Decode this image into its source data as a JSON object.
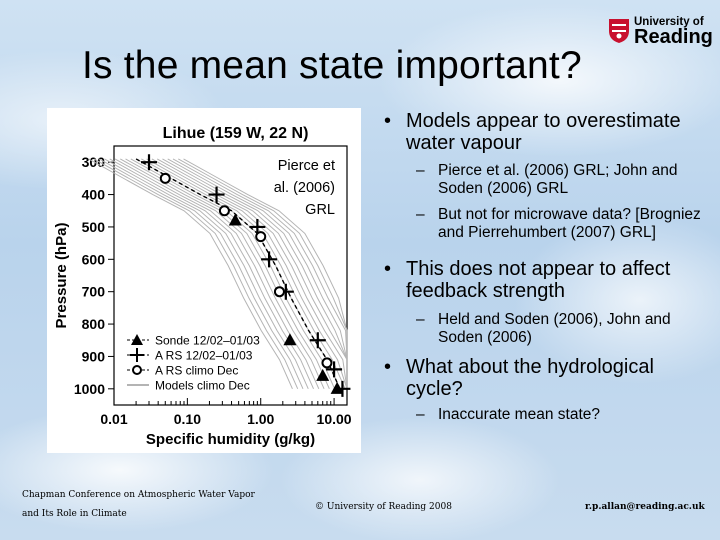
{
  "slide": {
    "title": "Is the mean state important?",
    "logo": {
      "line1": "University of",
      "line2": "Reading"
    }
  },
  "chart_data": {
    "type": "line",
    "title": "Lihue (159 W, 22 N)",
    "annotation": "Pierce et al. (2006) GRL",
    "xlabel": "Specific humidity (g/kg)",
    "ylabel": "Pressure (hPa)",
    "x_scale": "log",
    "xlim": [
      0.01,
      15
    ],
    "ylim": [
      1050,
      250
    ],
    "x_tick_labels": [
      "0.01",
      "0.10",
      "1.00",
      "10.00"
    ],
    "x_ticks": [
      0.01,
      0.1,
      1,
      10
    ],
    "y_ticks": [
      300,
      400,
      500,
      600,
      700,
      800,
      900,
      1000
    ],
    "legend_position": "bottom-left",
    "series": [
      {
        "name": "Sonde 12/02–01/03",
        "marker": "triangle",
        "points": [
          [
            0.45,
            480
          ],
          [
            2.5,
            850
          ],
          [
            7,
            960
          ],
          [
            11,
            1000
          ]
        ]
      },
      {
        "name": "A RS 12/02–01/03",
        "marker": "plus",
        "points": [
          [
            0.03,
            300
          ],
          [
            0.25,
            400
          ],
          [
            0.9,
            500
          ],
          [
            1.3,
            600
          ],
          [
            2.2,
            700
          ],
          [
            6,
            850
          ],
          [
            10,
            940
          ],
          [
            13,
            1000
          ]
        ]
      },
      {
        "name": "A RS climo Dec",
        "marker": "circle",
        "points": [
          [
            0.05,
            350
          ],
          [
            0.32,
            450
          ],
          [
            1.0,
            530
          ],
          [
            1.8,
            700
          ],
          [
            8,
            920
          ]
        ]
      },
      {
        "name": "Models climo Dec",
        "marker": "line",
        "points": [
          [
            0.02,
            290
          ],
          [
            0.06,
            350
          ],
          [
            0.15,
            400
          ],
          [
            0.4,
            450
          ],
          [
            0.9,
            520
          ],
          [
            1.6,
            620
          ],
          [
            2.6,
            720
          ],
          [
            4.5,
            820
          ],
          [
            8,
            910
          ],
          [
            12,
            1000
          ]
        ]
      }
    ]
  },
  "bullets": [
    {
      "level": 1,
      "text": "Models appear to overestimate water vapour"
    },
    {
      "level": 2,
      "text": "Pierce et al. (2006) GRL; John and Soden (2006) GRL"
    },
    {
      "level": 2,
      "text": "But not for microwave data? [Brogniez and Pierrehumbert (2007) GRL]"
    },
    {
      "level": 1,
      "text": "This does not appear to affect feedback strength"
    },
    {
      "level": 2,
      "text": "Held and Soden (2006), John and Soden (2006)"
    },
    {
      "level": 1,
      "text": "What about the hydrological cycle?"
    },
    {
      "level": 2,
      "text": "Inaccurate mean state?"
    }
  ],
  "footer": {
    "conference": "Chapman Conference on Atmospheric Water Vapor and Its Role in Climate",
    "copyright": "© University of Reading 2008",
    "email": "r.p.allan@reading.ac.uk"
  }
}
